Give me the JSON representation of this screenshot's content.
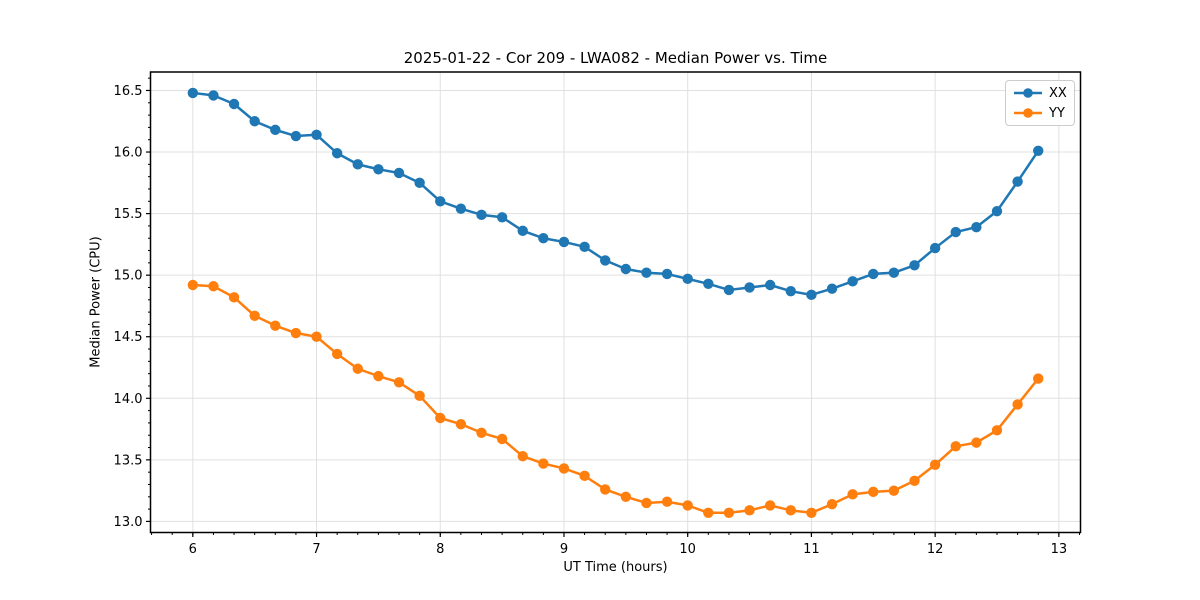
{
  "chart_data": {
    "type": "line",
    "title": "2025-01-22 - Cor 209 - LWA082 - Median Power vs. Time",
    "xlabel": "UT Time (hours)",
    "ylabel": "Median Power (CPU)",
    "xlim": [
      5.658,
      13.175
    ],
    "ylim": [
      12.91,
      16.65
    ],
    "xticks": [
      6,
      7,
      8,
      9,
      10,
      11,
      12,
      13
    ],
    "yticks": [
      13.0,
      13.5,
      14.0,
      14.5,
      15.0,
      15.5,
      16.0,
      16.5
    ],
    "x_minor_step": 0.166667,
    "y_minor_step": 0.1,
    "grid": true,
    "grid_color": "#e0e0e0",
    "legend_position": "upper right",
    "x": [
      6.0,
      6.1667,
      6.3333,
      6.5,
      6.6667,
      6.8333,
      7.0,
      7.1667,
      7.3333,
      7.5,
      7.6667,
      7.8333,
      8.0,
      8.1667,
      8.3333,
      8.5,
      8.6667,
      8.8333,
      9.0,
      9.1667,
      9.3333,
      9.5,
      9.6667,
      9.8333,
      10.0,
      10.1667,
      10.3333,
      10.5,
      10.6667,
      10.8333,
      11.0,
      11.1667,
      11.3333,
      11.5,
      11.6667,
      11.8333,
      12.0,
      12.1667,
      12.3333,
      12.5,
      12.6667,
      12.8333
    ],
    "series": [
      {
        "name": "XX",
        "color": "#1f77b4",
        "values": [
          16.48,
          16.46,
          16.39,
          16.25,
          16.18,
          16.13,
          16.14,
          15.99,
          15.9,
          15.86,
          15.83,
          15.75,
          15.6,
          15.54,
          15.49,
          15.47,
          15.36,
          15.3,
          15.27,
          15.23,
          15.12,
          15.05,
          15.02,
          15.01,
          14.97,
          14.93,
          14.88,
          14.9,
          14.92,
          14.87,
          14.84,
          14.89,
          14.95,
          15.01,
          15.02,
          15.08,
          15.22,
          15.35,
          15.39,
          15.52,
          15.76,
          16.01
        ]
      },
      {
        "name": "YY",
        "color": "#ff7f0e",
        "values": [
          14.92,
          14.91,
          14.82,
          14.67,
          14.59,
          14.53,
          14.5,
          14.36,
          14.24,
          14.18,
          14.13,
          14.02,
          13.84,
          13.79,
          13.72,
          13.67,
          13.53,
          13.47,
          13.43,
          13.37,
          13.26,
          13.2,
          13.15,
          13.16,
          13.13,
          13.07,
          13.07,
          13.09,
          13.13,
          13.09,
          13.07,
          13.14,
          13.22,
          13.24,
          13.25,
          13.33,
          13.46,
          13.61,
          13.64,
          13.74,
          13.95,
          14.16
        ]
      }
    ]
  }
}
